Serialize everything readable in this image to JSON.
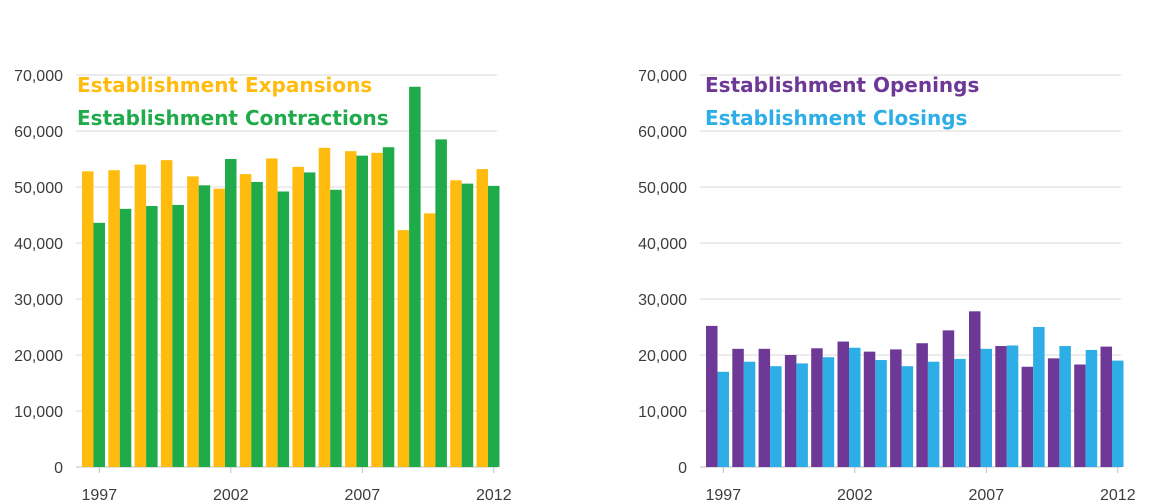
{
  "chart_data": [
    {
      "type": "bar",
      "title": "",
      "xlabel": "",
      "ylabel": "",
      "ylim": [
        0,
        70000
      ],
      "yticks": [
        0,
        10000,
        20000,
        30000,
        40000,
        50000,
        60000,
        70000
      ],
      "ytick_labels": [
        "0",
        "10,000",
        "20,000",
        "30,000",
        "40,000",
        "50,000",
        "60,000",
        "70,000"
      ],
      "xtick_labels": [
        "1997",
        "2002",
        "2007",
        "2012"
      ],
      "categories": [
        "1997",
        "1998",
        "1999",
        "2000",
        "2001",
        "2002",
        "2003",
        "2004",
        "2005",
        "2006",
        "2007",
        "2008",
        "2009",
        "2010",
        "2011",
        "2012"
      ],
      "grid": true,
      "legend_position": "top-left",
      "series": [
        {
          "name": "Establishment Expansions",
          "color": "#FFBC0F",
          "values": [
            52800,
            53000,
            54000,
            54800,
            51900,
            49700,
            52300,
            55100,
            53600,
            57000,
            56400,
            56100,
            42300,
            45300,
            51200,
            53200
          ]
        },
        {
          "name": "Establishment Contractions",
          "color": "#1FAB4A",
          "values": [
            43600,
            46100,
            46600,
            46800,
            50300,
            55000,
            50900,
            49200,
            52600,
            49500,
            55600,
            57100,
            67900,
            58500,
            50600,
            50200
          ]
        }
      ]
    },
    {
      "type": "bar",
      "title": "",
      "xlabel": "",
      "ylabel": "",
      "ylim": [
        0,
        70000
      ],
      "yticks": [
        0,
        10000,
        20000,
        30000,
        40000,
        50000,
        60000,
        70000
      ],
      "ytick_labels": [
        "0",
        "10,000",
        "20,000",
        "30,000",
        "40,000",
        "50,000",
        "60,000",
        "70,000"
      ],
      "xtick_labels": [
        "1997",
        "2002",
        "2007",
        "2012"
      ],
      "categories": [
        "1997",
        "1998",
        "1999",
        "2000",
        "2001",
        "2002",
        "2003",
        "2004",
        "2005",
        "2006",
        "2007",
        "2008",
        "2009",
        "2010",
        "2011",
        "2012"
      ],
      "grid": true,
      "legend_position": "top-left",
      "series": [
        {
          "name": "Establishment Openings",
          "color": "#6E3996",
          "values": [
            25200,
            21100,
            21100,
            20000,
            21200,
            22400,
            20600,
            21000,
            22100,
            24400,
            27800,
            21600,
            17900,
            19400,
            18300,
            21500
          ]
        },
        {
          "name": "Establishment Closings",
          "color": "#2EAEE6",
          "values": [
            17000,
            18800,
            18000,
            18500,
            19600,
            21300,
            19100,
            18000,
            18800,
            19300,
            21100,
            21700,
            25000,
            21600,
            20900,
            19000
          ]
        }
      ]
    }
  ]
}
